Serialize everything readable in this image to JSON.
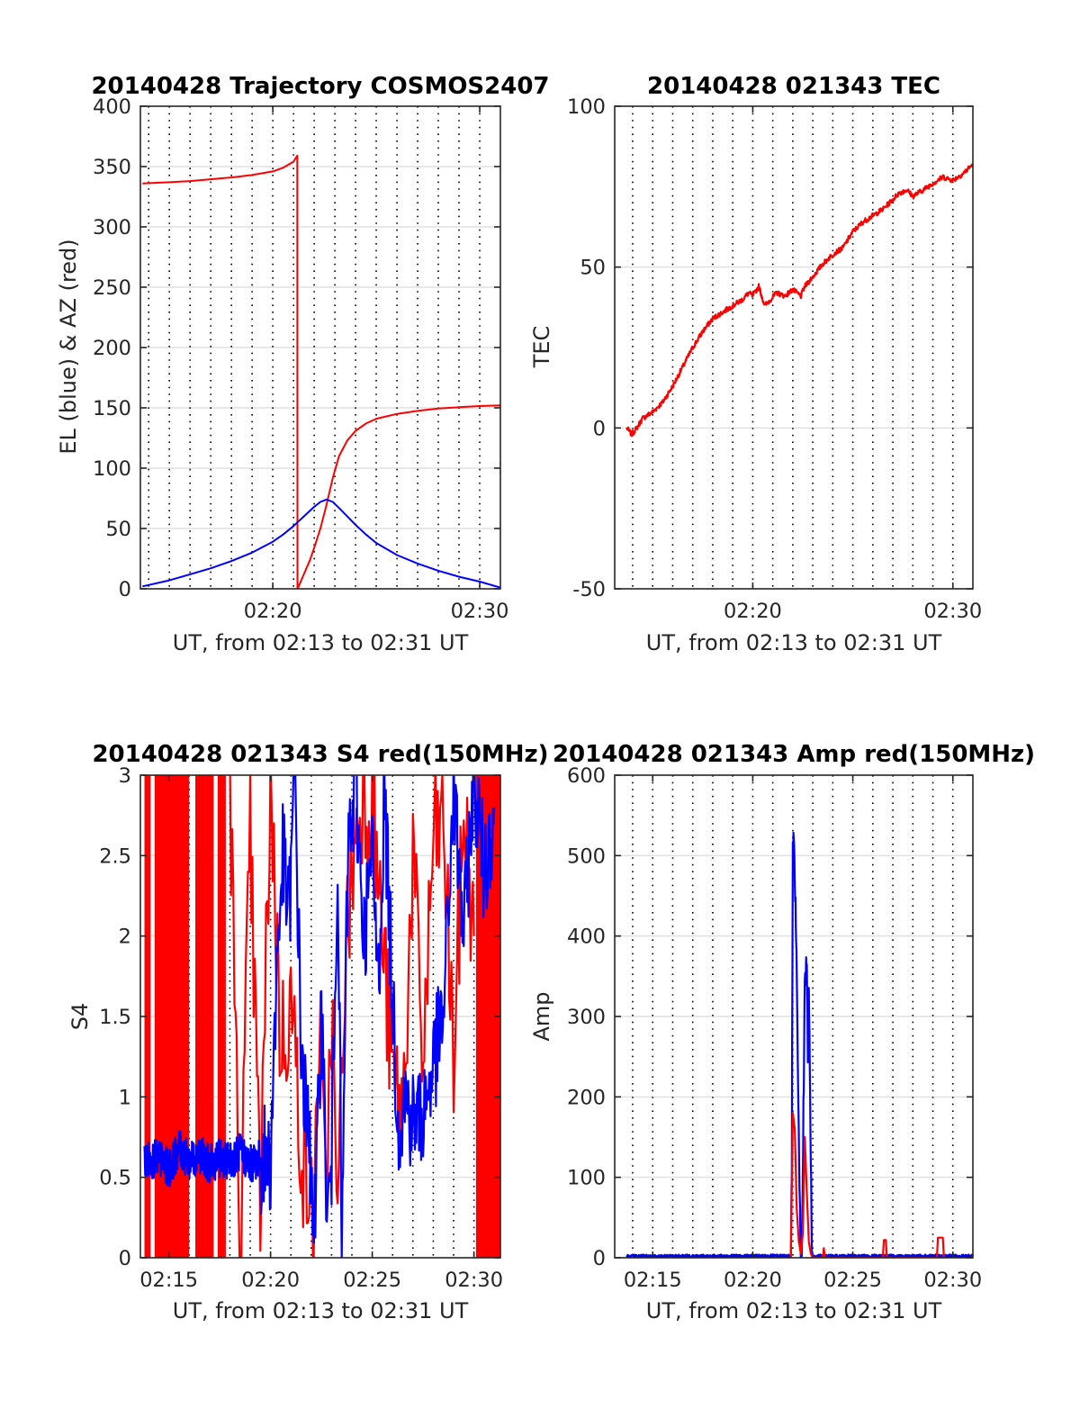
{
  "figure": {
    "colors": {
      "el": "#0000ff",
      "az": "#ff0000",
      "grid": "#e0e0e0",
      "minor_grid": "#000000",
      "axes": "#262626"
    }
  },
  "chart_data": [
    {
      "id": "trajectory",
      "type": "line",
      "title": "20140428 Trajectory COSMOS2407",
      "xlabel": "UT, from 02:13 to 02:31 UT",
      "ylabel": "EL (blue) & AZ (red)",
      "xlim": [
        13.6,
        31
      ],
      "ylim": [
        0,
        400
      ],
      "xticks": [
        20,
        30
      ],
      "xticklabels": [
        "02:20",
        "02:30"
      ],
      "yticks": [
        0,
        50,
        100,
        150,
        200,
        250,
        300,
        350,
        400
      ],
      "yticklabels": [
        "0",
        "50",
        "100",
        "150",
        "200",
        "250",
        "300",
        "350",
        "400"
      ],
      "minor_x_gridlines": [
        14,
        15,
        16,
        17,
        18,
        19,
        20,
        21,
        22,
        23,
        24,
        25,
        26,
        27,
        28,
        29,
        30
      ],
      "grid": true,
      "series": [
        {
          "color": "#ff0000",
          "x": [
            13.7,
            15,
            16,
            17,
            18,
            19,
            20,
            20.5,
            21.0,
            21.18,
            21.19,
            21.3,
            21.5,
            21.8,
            22.0,
            22.3,
            22.6,
            22.9,
            23.2,
            23.6,
            24.0,
            24.5,
            25,
            26,
            27,
            28,
            29,
            30,
            31
          ],
          "y": [
            336,
            337,
            338,
            339.5,
            341,
            343,
            346,
            349,
            354,
            359,
            0,
            4,
            12,
            24,
            34,
            50,
            70,
            92,
            110,
            123,
            131,
            137,
            141,
            145,
            147.5,
            149.5,
            150.5,
            151.5,
            152
          ]
        },
        {
          "color": "#0000ff",
          "x": [
            13.7,
            15,
            16,
            17,
            18,
            19,
            20,
            20.5,
            21,
            21.5,
            22,
            22.3,
            22.6,
            22.9,
            23.2,
            23.6,
            24,
            24.5,
            25,
            26,
            27,
            28,
            29,
            30,
            31
          ],
          "y": [
            2,
            7,
            12,
            17,
            23,
            30,
            39,
            45,
            52,
            60,
            68,
            72,
            74,
            72,
            67,
            60,
            53,
            45,
            38,
            28,
            21,
            15,
            10,
            6,
            1
          ]
        }
      ]
    },
    {
      "id": "tec",
      "type": "line",
      "title": "20140428 021343 TEC",
      "xlabel": "UT, from 02:13 to 02:31 UT",
      "ylabel": "TEC",
      "xlim": [
        13.1,
        31
      ],
      "ylim": [
        -50,
        100
      ],
      "xticks": [
        20,
        30
      ],
      "xticklabels": [
        "02:20",
        "02:30"
      ],
      "yticks": [
        -50,
        0,
        50,
        100
      ],
      "yticklabels": [
        "-50",
        "0",
        "50",
        "100"
      ],
      "minor_x_gridlines": [
        14,
        15,
        16,
        17,
        18,
        19,
        20,
        21,
        22,
        23,
        24,
        25,
        26,
        27,
        28,
        29,
        30
      ],
      "grid": true,
      "series": [
        {
          "color": "#ff0000",
          "x": [
            13.7,
            13.95,
            14.2,
            14.5,
            15,
            15.5,
            16,
            16.5,
            17,
            17.5,
            18,
            18.5,
            19,
            19.5,
            19.8,
            20,
            20.3,
            20.6,
            20.9,
            21.2,
            21.6,
            22,
            22.4,
            22.6,
            23,
            23.5,
            24,
            24.5,
            25,
            25.5,
            26,
            26.5,
            27,
            27.3,
            27.7,
            28,
            28.5,
            29,
            29.5,
            30,
            30.5,
            31
          ],
          "y": [
            0,
            -2,
            0,
            3,
            5,
            8,
            13,
            19,
            25,
            30,
            34,
            36,
            38,
            40,
            42,
            41,
            44,
            38,
            40,
            42,
            41,
            43,
            41,
            44,
            47,
            51,
            54,
            56,
            61,
            64,
            66,
            68,
            71,
            73,
            74,
            72,
            74,
            76,
            78,
            77,
            79,
            82
          ]
        }
      ]
    },
    {
      "id": "s4",
      "type": "line",
      "title": "20140428 021343 S4 red(150MHz)",
      "xlabel": "UT, from 02:13 to 02:31 UT",
      "ylabel": "S4",
      "xlim": [
        13.6,
        31.3
      ],
      "ylim": [
        0,
        3
      ],
      "xticks": [
        15,
        20,
        25,
        30
      ],
      "xticklabels": [
        "02:15",
        "02:20",
        "02:25",
        "02:30"
      ],
      "yticks": [
        0,
        0.5,
        1,
        1.5,
        2,
        2.5,
        3
      ],
      "yticklabels": [
        "0",
        "0.5",
        "1",
        "1.5",
        "2",
        "2.5",
        "3"
      ],
      "minor_x_gridlines": [
        14,
        15,
        16,
        17,
        18,
        19,
        20,
        21,
        22,
        23,
        24,
        25,
        26,
        27,
        28,
        29,
        30,
        31
      ],
      "grid": true,
      "series": [
        {
          "color": "#ff0000",
          "red_blocks": [
            [
              13.8,
              14.1
            ],
            [
              14.3,
              16.0
            ],
            [
              16.3,
              17.2
            ],
            [
              17.4,
              17.8
            ],
            [
              30.1,
              31.3
            ]
          ],
          "x": [
            18.0,
            18.5,
            19.0,
            19.5,
            20.0,
            20.5,
            21.0,
            21.3,
            21.6,
            21.9,
            22.1,
            22.4,
            22.7,
            23.0,
            23.3,
            23.6,
            24.0,
            24.5,
            25.0,
            25.5,
            26.0,
            26.5,
            27.0,
            27.5,
            28.0,
            28.5,
            29.0,
            29.5,
            30.0
          ],
          "y": [
            3.0,
            0.0,
            2.6,
            0.3,
            3.0,
            1.3,
            1.6,
            1.1,
            0.6,
            0.4,
            0.15,
            1.5,
            0.3,
            1.6,
            0.1,
            1.7,
            2.4,
            2.9,
            2.8,
            2.0,
            1.1,
            0.9,
            2.5,
            1.2,
            2.6,
            2.7,
            1.2,
            2.8,
            2.0
          ]
        },
        {
          "color": "#0000ff",
          "x": [
            13.8,
            14.5,
            15.0,
            15.5,
            16.0,
            16.5,
            17.0,
            17.5,
            18.0,
            18.5,
            19.0,
            19.5,
            20.0,
            20.3,
            20.6,
            20.9,
            21.2,
            21.5,
            21.8,
            22.0,
            22.2,
            22.5,
            22.8,
            23.0,
            23.3,
            23.5,
            23.8,
            24.2,
            24.6,
            25.0,
            25.3,
            25.6,
            26.0,
            26.3,
            26.6,
            27.0,
            27.5,
            28.0,
            28.5,
            29.0,
            29.5,
            30.0,
            30.5,
            31.0
          ],
          "y": [
            0.6,
            0.62,
            0.55,
            0.68,
            0.6,
            0.65,
            0.58,
            0.62,
            0.6,
            0.66,
            0.58,
            0.62,
            0.6,
            1.8,
            2.5,
            2.1,
            3.0,
            1.3,
            0.8,
            0.6,
            0.15,
            1.6,
            0.2,
            0.6,
            2.6,
            0.0,
            2.5,
            2.9,
            2.0,
            2.5,
            1.7,
            2.9,
            1.6,
            0.8,
            1.0,
            0.85,
            0.9,
            1.2,
            1.5,
            2.9,
            2.0,
            3.0,
            2.4,
            2.8
          ]
        }
      ]
    },
    {
      "id": "amp",
      "type": "line",
      "title": "20140428 021343 Amp red(150MHz)",
      "xlabel": "UT, from 02:13 to 02:31 UT",
      "ylabel": "Amp",
      "xlim": [
        13.1,
        31
      ],
      "ylim": [
        0,
        600
      ],
      "xticks": [
        15,
        20,
        25,
        30
      ],
      "xticklabels": [
        "02:15",
        "02:20",
        "02:25",
        "02:30"
      ],
      "yticks": [
        0,
        100,
        200,
        300,
        400,
        500,
        600
      ],
      "yticklabels": [
        "0",
        "100",
        "200",
        "300",
        "400",
        "500",
        "600"
      ],
      "minor_x_gridlines": [
        14,
        15,
        16,
        17,
        18,
        19,
        20,
        21,
        22,
        23,
        24,
        25,
        26,
        27,
        28,
        29,
        30,
        31
      ],
      "grid": true,
      "series": [
        {
          "color": "#0000ff",
          "x": [
            13.7,
            21.9,
            21.95,
            22.0,
            22.1,
            22.2,
            22.3,
            22.4,
            22.45,
            22.5,
            22.6,
            22.7,
            22.75,
            22.8,
            22.9,
            22.95,
            23.0,
            31
          ],
          "y": [
            2,
            2,
            100,
            530,
            480,
            360,
            150,
            10,
            3,
            100,
            340,
            370,
            250,
            350,
            120,
            10,
            2,
            2
          ]
        },
        {
          "color": "#ff0000",
          "x": [
            21.9,
            22.0,
            22.1,
            22.2,
            22.3,
            22.4,
            22.5,
            22.6,
            22.7,
            22.8,
            22.9,
            23.0,
            23.5,
            23.55,
            23.6,
            26.5,
            26.55,
            26.65,
            26.7,
            29.2,
            29.25,
            29.5,
            29.55
          ],
          "y": [
            0,
            180,
            160,
            60,
            20,
            5,
            30,
            150,
            80,
            20,
            5,
            0,
            0,
            12,
            0,
            0,
            22,
            22,
            0,
            0,
            25,
            25,
            0
          ]
        }
      ]
    }
  ]
}
